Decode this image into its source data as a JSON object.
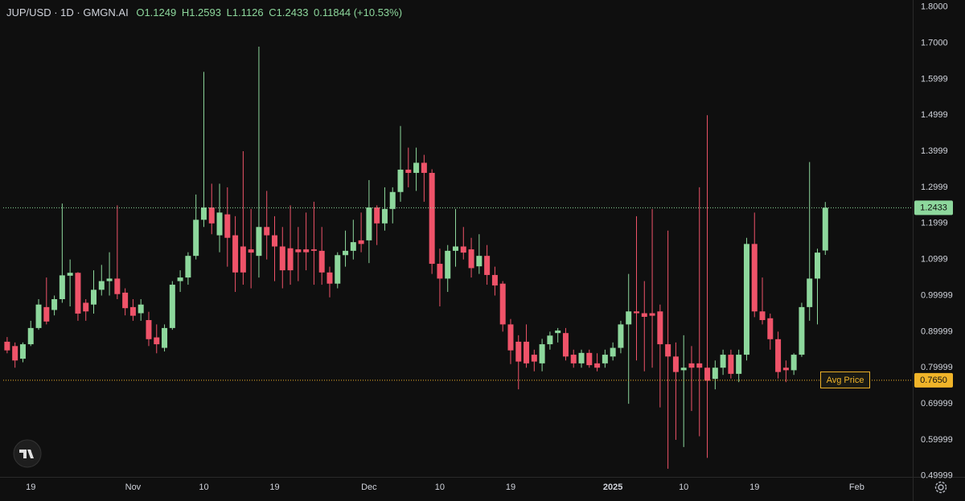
{
  "chart_data": {
    "type": "candlestick",
    "title": "JUP/USD · 1D · GMGN.AI",
    "ohlc_labels": [
      "O",
      "H",
      "L",
      "C"
    ],
    "change": 0.11844,
    "change_percent": {
      "value": 10.53,
      "label": "(+10.53%)"
    },
    "categories": [
      null,
      null,
      null,
      "19",
      null,
      null,
      null,
      null,
      null,
      null,
      null,
      null,
      null,
      null,
      null,
      null,
      "Nov",
      null,
      null,
      null,
      null,
      null,
      null,
      null,
      null,
      "10",
      null,
      null,
      null,
      null,
      null,
      null,
      null,
      null,
      "19",
      null,
      null,
      null,
      null,
      null,
      null,
      null,
      null,
      null,
      null,
      null,
      "Dec",
      null,
      null,
      null,
      null,
      null,
      null,
      null,
      null,
      "10",
      null,
      null,
      null,
      null,
      null,
      null,
      null,
      null,
      "19",
      null,
      null,
      null,
      null,
      null,
      null,
      null,
      null,
      null,
      null,
      null,
      null,
      "2025",
      null,
      null,
      null,
      null,
      null,
      null,
      null,
      null,
      "10",
      null,
      null,
      null,
      null,
      null,
      null,
      null,
      null,
      "19",
      null,
      null,
      null,
      null,
      null,
      null,
      null,
      null,
      null,
      null,
      null,
      null,
      "Feb",
      null,
      null,
      null,
      null,
      null,
      null
    ],
    "open": [
      0.872,
      0.86,
      0.825,
      0.865,
      0.91,
      0.968,
      0.96,
      0.99,
      1.055,
      1.063,
      0.98,
      0.975,
      1.016,
      1.04,
      1.047,
      1.008,
      0.968,
      0.951,
      0.932,
      0.884,
      0.855,
      0.91,
      1.04,
      1.05,
      1.11,
      1.21,
      1.244,
      1.167,
      1.225,
      1.167,
      1.136,
      1.128,
      1.11,
      1.19,
      1.167,
      1.136,
      1.131,
      1.128,
      1.128,
      1.128,
      1.124,
      1.064,
      1.033,
      1.112,
      1.124,
      1.153,
      1.153,
      1.244,
      1.2,
      1.24,
      1.287,
      1.349,
      1.34,
      1.368,
      1.34,
      1.088,
      1.047,
      1.124,
      1.136,
      1.128,
      1.081,
      1.11,
      1.057,
      1.033,
      0.92,
      0.872,
      0.872,
      0.836,
      0.812,
      0.865,
      0.896,
      0.896,
      0.836,
      0.812,
      0.841,
      0.812,
      0.812,
      0.831,
      0.855,
      0.92,
      0.956,
      0.951,
      0.951,
      0.956,
      0.865,
      0.831,
      0.793,
      0.812,
      0.812,
      0.8,
      0.769,
      0.8,
      0.836,
      0.783,
      0.836,
      1.143,
      0.956,
      0.937,
      0.879,
      0.8,
      0.793,
      0.836,
      0.968,
      1.047,
      1.1249,
      null,
      null,
      null,
      null,
      null,
      null,
      null,
      null,
      null,
      null
    ],
    "high": [
      0.885,
      0.87,
      0.87,
      0.93,
      0.99,
      1.05,
      1.0,
      1.255,
      1.1,
      1.065,
      0.99,
      1.07,
      1.085,
      1.12,
      1.25,
      1.02,
      0.99,
      0.99,
      0.955,
      0.92,
      0.92,
      1.04,
      1.07,
      1.12,
      1.28,
      1.62,
      1.31,
      1.31,
      1.3,
      1.22,
      1.4,
      1.24,
      1.69,
      1.29,
      1.22,
      1.19,
      1.25,
      1.19,
      1.23,
      1.26,
      1.19,
      1.08,
      1.12,
      1.18,
      1.21,
      1.23,
      1.32,
      1.25,
      1.3,
      1.3,
      1.47,
      1.41,
      1.41,
      1.39,
      1.35,
      1.13,
      1.14,
      1.24,
      1.19,
      1.16,
      1.17,
      1.14,
      1.08,
      1.04,
      0.935,
      0.89,
      0.92,
      0.85,
      0.88,
      0.9,
      0.91,
      0.91,
      0.85,
      0.85,
      0.85,
      0.84,
      0.85,
      0.87,
      0.93,
      1.06,
      1.22,
      1.04,
      1.24,
      0.975,
      1.18,
      0.87,
      0.89,
      0.86,
      1.3,
      1.5,
      0.82,
      0.85,
      0.85,
      0.85,
      1.16,
      1.23,
      1.05,
      0.95,
      0.9,
      0.82,
      0.84,
      0.98,
      1.37,
      1.13,
      1.2593,
      null,
      null,
      null,
      null,
      null,
      null,
      null,
      null,
      null,
      null
    ],
    "low": [
      0.84,
      0.8,
      0.815,
      0.86,
      0.905,
      0.92,
      0.945,
      0.98,
      0.97,
      0.93,
      0.93,
      0.95,
      1.0,
      1.0,
      0.99,
      0.945,
      0.93,
      0.93,
      0.86,
      0.84,
      0.845,
      0.905,
      1.01,
      1.03,
      1.1,
      1.19,
      1.17,
      1.12,
      1.08,
      1.01,
      1.03,
      1.02,
      1.05,
      1.1,
      1.04,
      1.02,
      1.03,
      1.04,
      1.07,
      1.03,
      1.03,
      0.995,
      1.02,
      1.08,
      1.1,
      1.12,
      1.09,
      1.14,
      1.18,
      1.2,
      1.26,
      1.3,
      1.29,
      1.26,
      1.06,
      0.97,
      1.01,
      1.08,
      1.1,
      1.05,
      1.06,
      1.03,
      1.0,
      0.9,
      0.81,
      0.74,
      0.8,
      0.79,
      0.79,
      0.85,
      0.87,
      0.82,
      0.8,
      0.8,
      0.8,
      0.79,
      0.8,
      0.82,
      0.84,
      0.7,
      0.82,
      0.79,
      0.8,
      0.69,
      0.52,
      0.6,
      0.58,
      0.68,
      0.61,
      0.55,
      0.74,
      0.78,
      0.77,
      0.76,
      0.82,
      0.94,
      0.92,
      0.85,
      0.77,
      0.76,
      0.78,
      0.83,
      0.93,
      0.92,
      1.1126,
      null,
      null,
      null,
      null,
      null,
      null,
      null,
      null,
      null,
      null
    ],
    "close": [
      0.848,
      0.82,
      0.865,
      0.91,
      0.975,
      0.928,
      0.99,
      1.056,
      1.063,
      0.95,
      0.956,
      1.016,
      1.04,
      1.047,
      1.004,
      0.965,
      0.944,
      0.975,
      0.879,
      0.865,
      0.91,
      1.03,
      1.05,
      1.11,
      1.21,
      1.244,
      1.2,
      1.23,
      1.16,
      1.064,
      1.064,
      1.119,
      1.19,
      1.167,
      1.136,
      1.07,
      1.07,
      1.12,
      1.12,
      1.124,
      1.064,
      1.033,
      1.112,
      1.124,
      1.148,
      1.143,
      1.244,
      1.2,
      1.24,
      1.287,
      1.349,
      1.34,
      1.368,
      1.34,
      1.088,
      1.047,
      1.124,
      1.136,
      1.119,
      1.076,
      1.11,
      1.057,
      1.028,
      0.92,
      0.848,
      0.817,
      0.812,
      0.817,
      0.865,
      0.889,
      0.903,
      0.831,
      0.812,
      0.841,
      0.807,
      0.8,
      0.836,
      0.855,
      0.92,
      0.956,
      0.951,
      0.941,
      0.944,
      0.865,
      0.831,
      0.788,
      0.8,
      0.8,
      0.8,
      0.764,
      0.8,
      0.836,
      0.783,
      0.836,
      1.143,
      0.956,
      0.932,
      0.879,
      0.788,
      0.793,
      0.836,
      0.968,
      1.047,
      1.119,
      1.2433,
      null,
      null,
      null,
      null,
      null,
      null,
      null,
      null,
      null,
      null
    ],
    "up_color": "#8dd79c",
    "down_color": "#ef5369",
    "avg_price": {
      "value": 0.765,
      "label": "0.7650"
    },
    "avg_price_name": "Avg Price",
    "avg_color": "#f0b429",
    "ylim": [
      0.4996,
      1.8192
    ],
    "yticks": [
      {
        "value": 1.8,
        "label": "1.8000"
      },
      {
        "value": 1.7,
        "label": "1.7000"
      },
      {
        "value": 1.5999,
        "label": "1.5999"
      },
      {
        "value": 1.4999,
        "label": "1.4999"
      },
      {
        "value": 1.3999,
        "label": "1.3999"
      },
      {
        "value": 1.2999,
        "label": "1.2999"
      },
      {
        "value": 1.1999,
        "label": "1.1999"
      },
      {
        "value": 1.0999,
        "label": "1.0999"
      },
      {
        "value": 0.99999,
        "label": "0.99999"
      },
      {
        "value": 0.89999,
        "label": "0.89999"
      },
      {
        "value": 0.79999,
        "label": "0.79999"
      },
      {
        "value": 0.69999,
        "label": "0.69999"
      },
      {
        "value": 0.59999,
        "label": "0.59999"
      },
      {
        "value": 0.49999,
        "label": "0.49999"
      }
    ],
    "grid": false
  }
}
